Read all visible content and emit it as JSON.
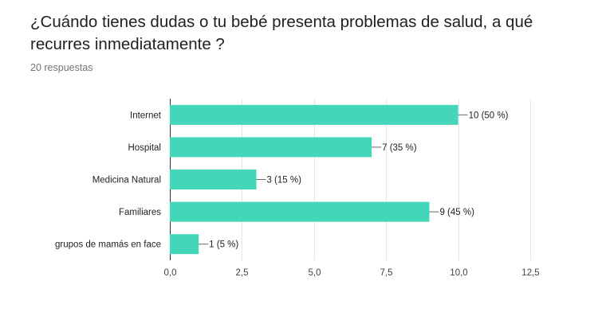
{
  "header": {
    "title": "¿Cuándo tienes dudas o tu bebé presenta problemas de salud, a qué recurres inmediatamente ?",
    "responses": "20 respuestas"
  },
  "chart_data": {
    "type": "bar",
    "orientation": "horizontal",
    "title": "¿Cuándo tienes dudas o tu bebé presenta problemas de salud, a qué recurres inmediatamente ?",
    "categories": [
      "Internet",
      "Hospital",
      "Medicina Natural",
      "Familiares",
      "grupos de mamás en face"
    ],
    "values": [
      10,
      7,
      3,
      9,
      1
    ],
    "data_labels": [
      "10 (50 %)",
      "7 (35 %)",
      "3 (15 %)",
      "9 (45 %)",
      "1 (5 %)"
    ],
    "xlim": [
      0,
      12.5
    ],
    "x_ticks": [
      0,
      2.5,
      5,
      7.5,
      10,
      12.5
    ],
    "x_tick_labels": [
      "0,0",
      "2,5",
      "5,0",
      "7,5",
      "10,0",
      "12,5"
    ],
    "grid": true,
    "legend": "none",
    "bar_color": "#43d6b9"
  }
}
